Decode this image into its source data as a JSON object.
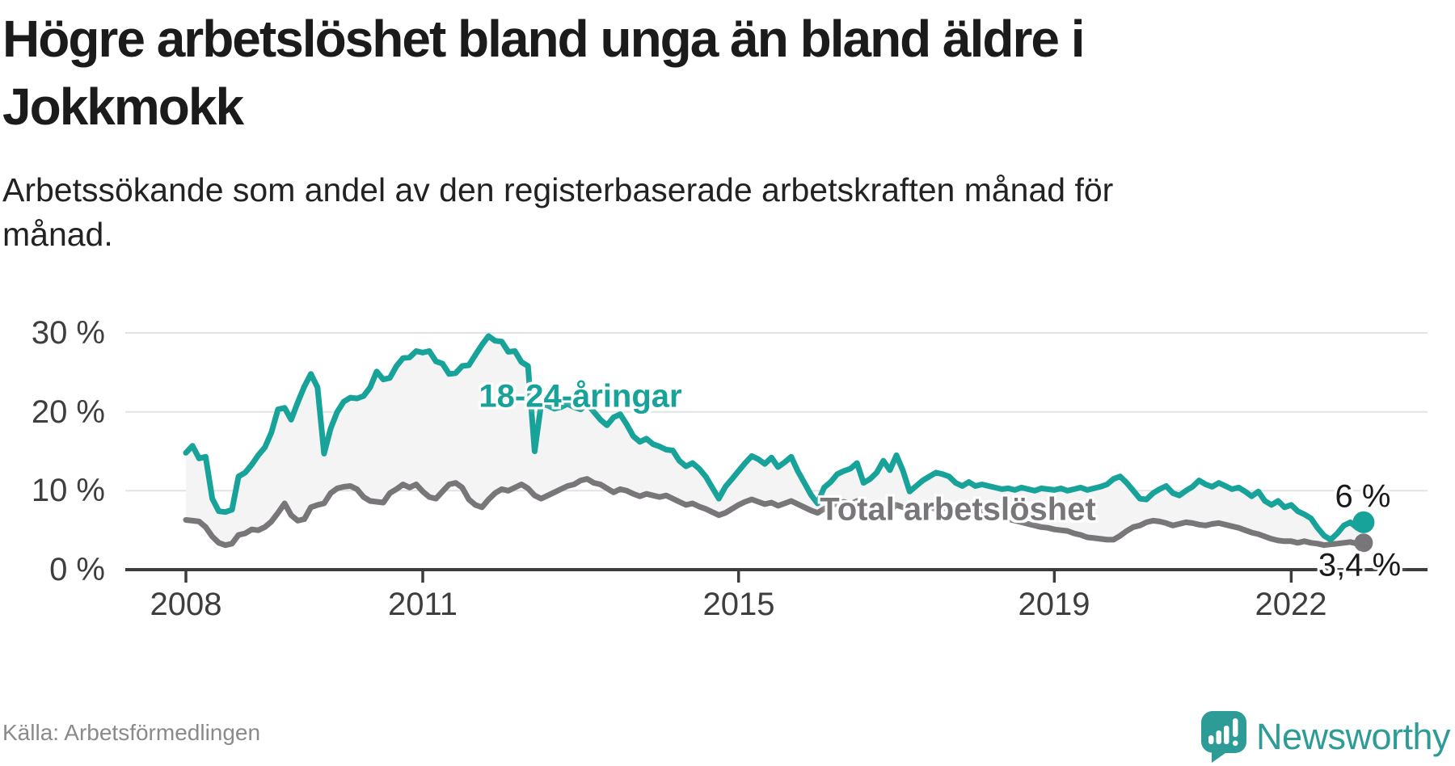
{
  "title": "Högre arbetslöshet bland unga än bland äldre i Jokkmokk",
  "subtitle": "Arbetssökande som andel av den registerbaserade arbetskraften månad för månad.",
  "source": "Källa: Arbetsförmedlingen",
  "branding": {
    "name": "Newsworthy",
    "icon": "speech-bubble-bar-chart-exclamation-icon",
    "color": "#2E9C96"
  },
  "chart_data": {
    "type": "line",
    "title": "Högre arbetslöshet bland unga än bland äldre i Jokkmokk",
    "xlabel": "",
    "ylabel": "Arbetssökande som andel av den registerbaserade arbetskraften",
    "x_start": "2008-01",
    "x_end": "2022-12",
    "frequency": "monthly",
    "x_tick_years": [
      "2008",
      "2011",
      "2015",
      "2019",
      "2022"
    ],
    "y_tick_labels": [
      "0 %",
      "10 %",
      "20 %",
      "30 %"
    ],
    "y_tick_values": [
      0,
      10,
      20,
      30
    ],
    "ylim": [
      0,
      31.5
    ],
    "grid": "horizontal",
    "gridline_color": "#E2E2E2",
    "axis_color": "#3C3C3C",
    "band_fill_color": "#F4F4F4",
    "legend_position": "inline-labels",
    "series": [
      {
        "name": "18-24-åringar",
        "color": "#17A29A",
        "end_label": "6 %",
        "end_value": 6.0,
        "values": [
          14.8,
          15.7,
          14.1,
          14.3,
          9.0,
          7.4,
          7.3,
          7.6,
          11.8,
          12.3,
          13.3,
          14.5,
          15.5,
          17.4,
          20.3,
          20.5,
          19.0,
          21.2,
          23.2,
          24.8,
          23.1,
          14.7,
          17.9,
          20.0,
          21.3,
          21.8,
          21.7,
          22.0,
          23.1,
          25.1,
          24.1,
          24.3,
          25.8,
          26.8,
          26.9,
          27.7,
          27.5,
          27.7,
          26.4,
          26.1,
          24.8,
          24.9,
          25.8,
          25.9,
          27.2,
          28.5,
          29.6,
          29.0,
          28.9,
          27.6,
          27.7,
          26.3,
          25.8,
          15.0,
          21.0,
          20.8,
          20.4,
          20.6,
          21.0,
          20.6,
          20.3,
          21.0,
          20.0,
          19.0,
          18.3,
          19.3,
          19.7,
          18.4,
          16.9,
          16.2,
          16.6,
          15.9,
          15.6,
          15.2,
          15.1,
          13.8,
          13.1,
          13.5,
          12.8,
          11.8,
          10.4,
          9.0,
          10.5,
          11.5,
          12.5,
          13.5,
          14.4,
          14.0,
          13.4,
          14.2,
          13.0,
          13.6,
          14.3,
          12.5,
          11.0,
          9.5,
          8.4,
          10.4,
          11.1,
          12.1,
          12.5,
          12.8,
          13.5,
          11.0,
          11.5,
          12.3,
          13.8,
          12.6,
          14.5,
          12.5,
          9.9,
          10.6,
          11.3,
          11.8,
          12.3,
          12.1,
          11.8,
          11.0,
          10.6,
          11.1,
          10.6,
          10.8,
          10.6,
          10.4,
          10.2,
          10.3,
          10.1,
          10.4,
          10.2,
          10.0,
          10.3,
          10.2,
          10.1,
          10.3,
          10.0,
          10.2,
          10.4,
          10.1,
          10.3,
          10.5,
          10.8,
          11.5,
          11.8,
          11.0,
          10.0,
          9.0,
          8.9,
          9.7,
          10.2,
          10.6,
          9.7,
          9.4,
          10.0,
          10.5,
          11.3,
          10.8,
          10.5,
          11.0,
          10.6,
          10.2,
          10.4,
          9.9,
          9.3,
          9.9,
          8.7,
          8.2,
          8.7,
          7.9,
          8.2,
          7.4,
          7.0,
          6.5,
          5.3,
          4.3,
          3.8,
          4.6,
          5.6,
          6.0,
          5.3,
          6.0
        ]
      },
      {
        "name": "Total arbetslöshet",
        "color": "#787679",
        "end_label": "3,4 %",
        "end_value": 3.4,
        "values": [
          6.3,
          6.2,
          6.1,
          5.4,
          4.2,
          3.4,
          3.1,
          3.3,
          4.4,
          4.6,
          5.1,
          5.0,
          5.4,
          6.1,
          7.2,
          8.4,
          6.9,
          6.2,
          6.4,
          7.9,
          8.2,
          8.4,
          9.7,
          10.3,
          10.5,
          10.6,
          10.2,
          9.2,
          8.7,
          8.6,
          8.5,
          9.7,
          10.2,
          10.8,
          10.4,
          10.8,
          9.9,
          9.2,
          9.0,
          9.9,
          10.8,
          11.0,
          10.4,
          8.9,
          8.2,
          7.9,
          8.9,
          9.7,
          10.2,
          10.0,
          10.4,
          10.8,
          10.3,
          9.4,
          9.0,
          9.4,
          9.8,
          10.2,
          10.6,
          10.8,
          11.3,
          11.5,
          11.0,
          10.8,
          10.3,
          9.8,
          10.2,
          10.0,
          9.6,
          9.3,
          9.6,
          9.4,
          9.2,
          9.4,
          9.0,
          8.6,
          8.2,
          8.4,
          8.0,
          7.7,
          7.3,
          6.9,
          7.2,
          7.7,
          8.2,
          8.6,
          8.9,
          8.6,
          8.3,
          8.5,
          8.1,
          8.4,
          8.7,
          8.3,
          7.9,
          7.5,
          7.2,
          7.7,
          8.1,
          8.4,
          8.6,
          8.3,
          8.7,
          8.2,
          7.9,
          7.7,
          7.9,
          7.6,
          8.2,
          7.9,
          7.4,
          7.6,
          7.7,
          7.9,
          7.7,
          7.9,
          7.6,
          7.4,
          7.4,
          7.5,
          7.4,
          7.3,
          7.2,
          6.9,
          6.6,
          6.4,
          6.2,
          6.0,
          5.8,
          5.6,
          5.4,
          5.3,
          5.1,
          5.0,
          4.9,
          4.6,
          4.4,
          4.1,
          4.0,
          3.9,
          3.8,
          3.8,
          4.3,
          4.9,
          5.4,
          5.6,
          6.0,
          6.2,
          6.1,
          5.9,
          5.6,
          5.8,
          6.0,
          5.9,
          5.7,
          5.6,
          5.8,
          5.9,
          5.7,
          5.5,
          5.3,
          5.0,
          4.7,
          4.5,
          4.2,
          3.9,
          3.7,
          3.6,
          3.6,
          3.4,
          3.6,
          3.4,
          3.3,
          3.1,
          3.2,
          3.3,
          3.4,
          3.5,
          3.3,
          3.4
        ]
      }
    ]
  }
}
